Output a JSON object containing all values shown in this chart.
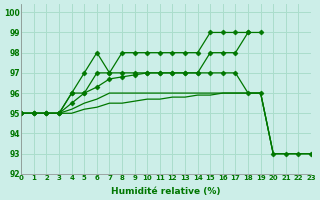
{
  "xlabel": "Humidité relative (%)",
  "bg_color": "#cceee8",
  "grid_color": "#aaddcc",
  "line_color": "#007700",
  "xlim": [
    0,
    23
  ],
  "ylim": [
    92,
    100.4
  ],
  "ytick_values": [
    92,
    93,
    94,
    95,
    96,
    97,
    98,
    99,
    100
  ],
  "series": [
    {
      "x": [
        0,
        1,
        2,
        3,
        4,
        5,
        6,
        7,
        8,
        9,
        10,
        11,
        12,
        13,
        14,
        15,
        16,
        17,
        18,
        19
      ],
      "y": [
        95,
        95,
        95,
        95,
        96,
        97,
        98,
        97,
        98,
        98,
        98,
        98,
        98,
        98,
        98,
        99,
        99,
        99,
        99,
        99
      ],
      "marker": true
    },
    {
      "x": [
        0,
        1,
        2,
        3,
        4,
        5,
        6,
        7,
        8,
        9,
        10,
        11,
        12,
        13,
        14,
        15,
        16,
        17,
        18
      ],
      "y": [
        95,
        95,
        95,
        95,
        96,
        96,
        97,
        97,
        97,
        97,
        97,
        97,
        97,
        97,
        97,
        98,
        98,
        98,
        99
      ],
      "marker": true
    },
    {
      "x": [
        0,
        1,
        2,
        3,
        4,
        5,
        6,
        7,
        8,
        9,
        10,
        11,
        12,
        13,
        14,
        15,
        16,
        17,
        18,
        19,
        20,
        21,
        22,
        23
      ],
      "y": [
        95,
        95,
        95,
        95,
        95.5,
        96,
        96.3,
        96.7,
        96.8,
        96.9,
        97,
        97,
        97,
        97,
        97,
        97,
        97,
        97,
        96,
        96,
        93,
        93,
        93,
        93
      ],
      "marker": true
    },
    {
      "x": [
        0,
        1,
        2,
        3,
        4,
        5,
        6,
        7,
        8,
        9,
        10,
        11,
        12,
        13,
        14,
        15,
        16,
        17,
        18,
        19,
        20,
        21,
        22,
        23
      ],
      "y": [
        95,
        95,
        95,
        95,
        95.2,
        95.5,
        95.7,
        96,
        96,
        96,
        96,
        96,
        96,
        96,
        96,
        96,
        96,
        96,
        96,
        96,
        93,
        93,
        93,
        93
      ],
      "marker": false
    },
    {
      "x": [
        0,
        1,
        2,
        3,
        4,
        5,
        6,
        7,
        8,
        9,
        10,
        11,
        12,
        13,
        14,
        15,
        16,
        17,
        18,
        19,
        20,
        21,
        22,
        23
      ],
      "y": [
        95,
        95,
        95,
        95,
        95,
        95.2,
        95.3,
        95.5,
        95.5,
        95.6,
        95.7,
        95.7,
        95.8,
        95.8,
        95.9,
        95.9,
        96,
        96,
        96,
        96,
        93,
        93,
        93,
        93
      ],
      "marker": false
    }
  ]
}
